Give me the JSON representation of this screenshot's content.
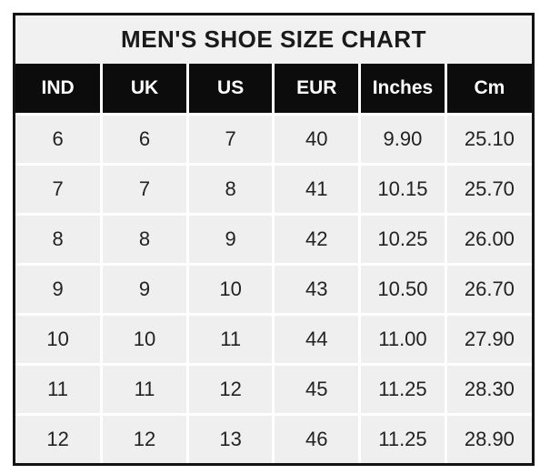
{
  "chart_data": {
    "type": "table",
    "title": "MEN'S SHOE SIZE CHART",
    "columns": [
      "IND",
      "UK",
      "US",
      "EUR",
      "Inches",
      "Cm"
    ],
    "rows": [
      [
        "6",
        "6",
        "7",
        "40",
        "9.90",
        "25.10"
      ],
      [
        "7",
        "7",
        "8",
        "41",
        "10.15",
        "25.70"
      ],
      [
        "8",
        "8",
        "9",
        "42",
        "10.25",
        "26.00"
      ],
      [
        "9",
        "9",
        "10",
        "43",
        "10.50",
        "26.70"
      ],
      [
        "10",
        "10",
        "11",
        "44",
        "11.00",
        "27.90"
      ],
      [
        "11",
        "11",
        "12",
        "45",
        "11.25",
        "28.30"
      ],
      [
        "12",
        "12",
        "13",
        "46",
        "11.25",
        "28.90"
      ]
    ]
  },
  "colors": {
    "border": "#131313",
    "title_bg": "#f1f1f1",
    "header_bg": "#0c0c0c",
    "header_text": "#ffffff",
    "cell_bg": "#efefef",
    "cell_text": "#222222",
    "separator": "#ffffff",
    "page_bg": "#ffffff"
  }
}
